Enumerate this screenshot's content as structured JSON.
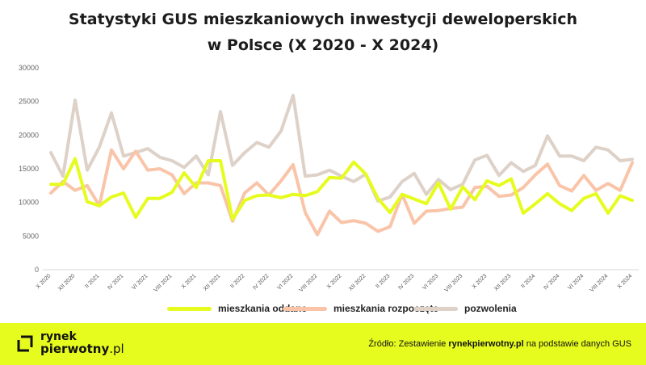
{
  "header": {
    "title_line1": "Statystyki GUS mieszkaniowych inwestycji deweloperskich",
    "title_line2": "w Polsce (X 2020 - X 2024)"
  },
  "colors": {
    "oddane": "#e6fb1e",
    "rozpoczete": "#f9c4a8",
    "pozwolenia": "#ddd1c8",
    "footer_bg": "#e6fb1e"
  },
  "chart_data": {
    "type": "line",
    "title": "Statystyki GUS mieszkaniowych inwestycji deweloperskich w Polsce (X 2020 - X 2024)",
    "xlabel": "",
    "ylabel": "",
    "ylim": [
      0,
      30000
    ],
    "yticks": [
      "0",
      "5000",
      "10000",
      "15000",
      "20000",
      "25000",
      "30000"
    ],
    "grid": false,
    "legend_position": "bottom",
    "categories": [
      "X 2020",
      "XI 2020",
      "XII 2020",
      "I 2021",
      "II 2021",
      "III 2021",
      "IV 2021",
      "V 2021",
      "VI 2021",
      "VII 2021",
      "VIII 2021",
      "IX 2021",
      "X 2021",
      "XI 2021",
      "XII 2021",
      "I 2022",
      "II 2022",
      "III 2022",
      "IV 2022",
      "V 2022",
      "VI 2022",
      "VII 2022",
      "VIII 2022",
      "IX 2022",
      "X 2022",
      "XI 2022",
      "XII 2022",
      "I 2023",
      "II 2023",
      "III 2023",
      "IV 2023",
      "V 2023",
      "VI 2023",
      "VII 2023",
      "VIII 2023",
      "IX 2023",
      "X 2023",
      "XI 2023",
      "XII 2023",
      "I 2024",
      "II 2024",
      "III 2024",
      "IV 2024",
      "V 2024",
      "VI 2024",
      "VII 2024",
      "VIII 2024",
      "IX 2024",
      "X 2024"
    ],
    "x_tick_labels": [
      "X 2020",
      "XII 2020",
      "II 2021",
      "IV 2021",
      "VI 2021",
      "VIII 2021",
      "X 2021",
      "XII 2021",
      "II 2022",
      "IV 2022",
      "VI 2022",
      "VIII 2022",
      "X 2022",
      "XII 2022",
      "II 2023",
      "IV 2023",
      "VI 2023",
      "VIII 2023",
      "X 2023",
      "XII 2023",
      "II 2024",
      "IV 2024",
      "VI 2024",
      "VIII 2024",
      "X 2024"
    ],
    "series": [
      {
        "name": "mieszkania oddane",
        "color": "#e6fb1e",
        "values": [
          12700,
          12700,
          16500,
          10100,
          9500,
          10800,
          11400,
          7800,
          10600,
          10600,
          11500,
          14400,
          12200,
          16200,
          16200,
          7500,
          10300,
          11000,
          11100,
          10700,
          11200,
          11000,
          11600,
          13700,
          13600,
          16000,
          14200,
          10600,
          8500,
          11200,
          10500,
          9800,
          12900,
          9000,
          12300,
          10400,
          13200,
          12500,
          13500,
          8400,
          9800,
          11300,
          9800,
          8800,
          10600,
          11300,
          8400,
          11000,
          10300
        ]
      },
      {
        "name": "mieszkania rozpoczęte",
        "color": "#f9c4a8",
        "values": [
          11400,
          13100,
          11800,
          12500,
          9500,
          17800,
          15000,
          17600,
          14800,
          15000,
          14100,
          11300,
          12900,
          12900,
          12500,
          7200,
          11400,
          12900,
          11100,
          13200,
          15600,
          8500,
          5200,
          8700,
          7000,
          7300,
          6900,
          5700,
          6400,
          11200,
          6900,
          8700,
          8800,
          9100,
          9300,
          12200,
          12400,
          10900,
          11100,
          12200,
          14100,
          15700,
          12500,
          11700,
          14000,
          11800,
          12800,
          11800,
          15900
        ]
      },
      {
        "name": "pozwolenia",
        "color": "#ddd1c8",
        "values": [
          17400,
          13900,
          25200,
          14800,
          18200,
          23300,
          16900,
          17400,
          18000,
          16700,
          16200,
          15200,
          16900,
          14100,
          23500,
          15500,
          17400,
          18900,
          18200,
          20600,
          25900,
          13900,
          14100,
          14800,
          13900,
          13100,
          14200,
          10200,
          10800,
          13100,
          14300,
          11200,
          13400,
          11900,
          12700,
          16300,
          17000,
          14000,
          15900,
          14600,
          15500,
          19900,
          16900,
          16900,
          16200,
          18200,
          17800,
          16200,
          16400
        ]
      }
    ]
  },
  "footer": {
    "logo_line1": "rynek",
    "logo_line2_bold": "pierwotny",
    "logo_line2_light": ".pl",
    "source_prefix": "Źródło: Zestawienie ",
    "source_brand": "rynekpierwotny.pl",
    "source_suffix": " na podstawie danych GUS"
  }
}
